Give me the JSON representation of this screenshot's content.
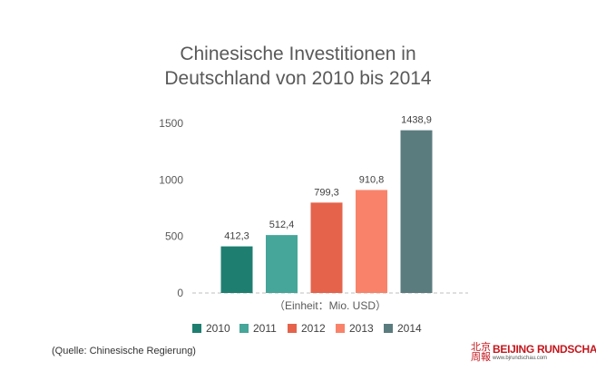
{
  "chart_data": {
    "type": "bar",
    "title_lines": [
      "Chinesische Investitionen in",
      "Deutschland von 2010 bis 2014"
    ],
    "categories": [
      "2010",
      "2011",
      "2012",
      "2013",
      "2014"
    ],
    "values": [
      412.3,
      512.4,
      799.3,
      910.8,
      1438.9
    ],
    "value_labels": [
      "412,3",
      "512,4",
      "799,3",
      "910,8",
      "1438,9"
    ],
    "colors": [
      "#1e7f71",
      "#45a699",
      "#e5634b",
      "#f8836a",
      "#5b7c7f"
    ],
    "xlabel": "（Einheit：Mio. USD）",
    "ylabel": "",
    "ylim": [
      0,
      1500
    ],
    "yticks": [
      "0",
      "500",
      "1000",
      "1500"
    ],
    "grid": false,
    "legend_position": "bottom"
  },
  "footer": {
    "source": "(Quelle: Chinesische Regierung)",
    "logo_name": "BEIJING RUNDSCHAU",
    "logo_url": "www.bjrundschau.com",
    "logo_glyphs": "北京周報"
  }
}
